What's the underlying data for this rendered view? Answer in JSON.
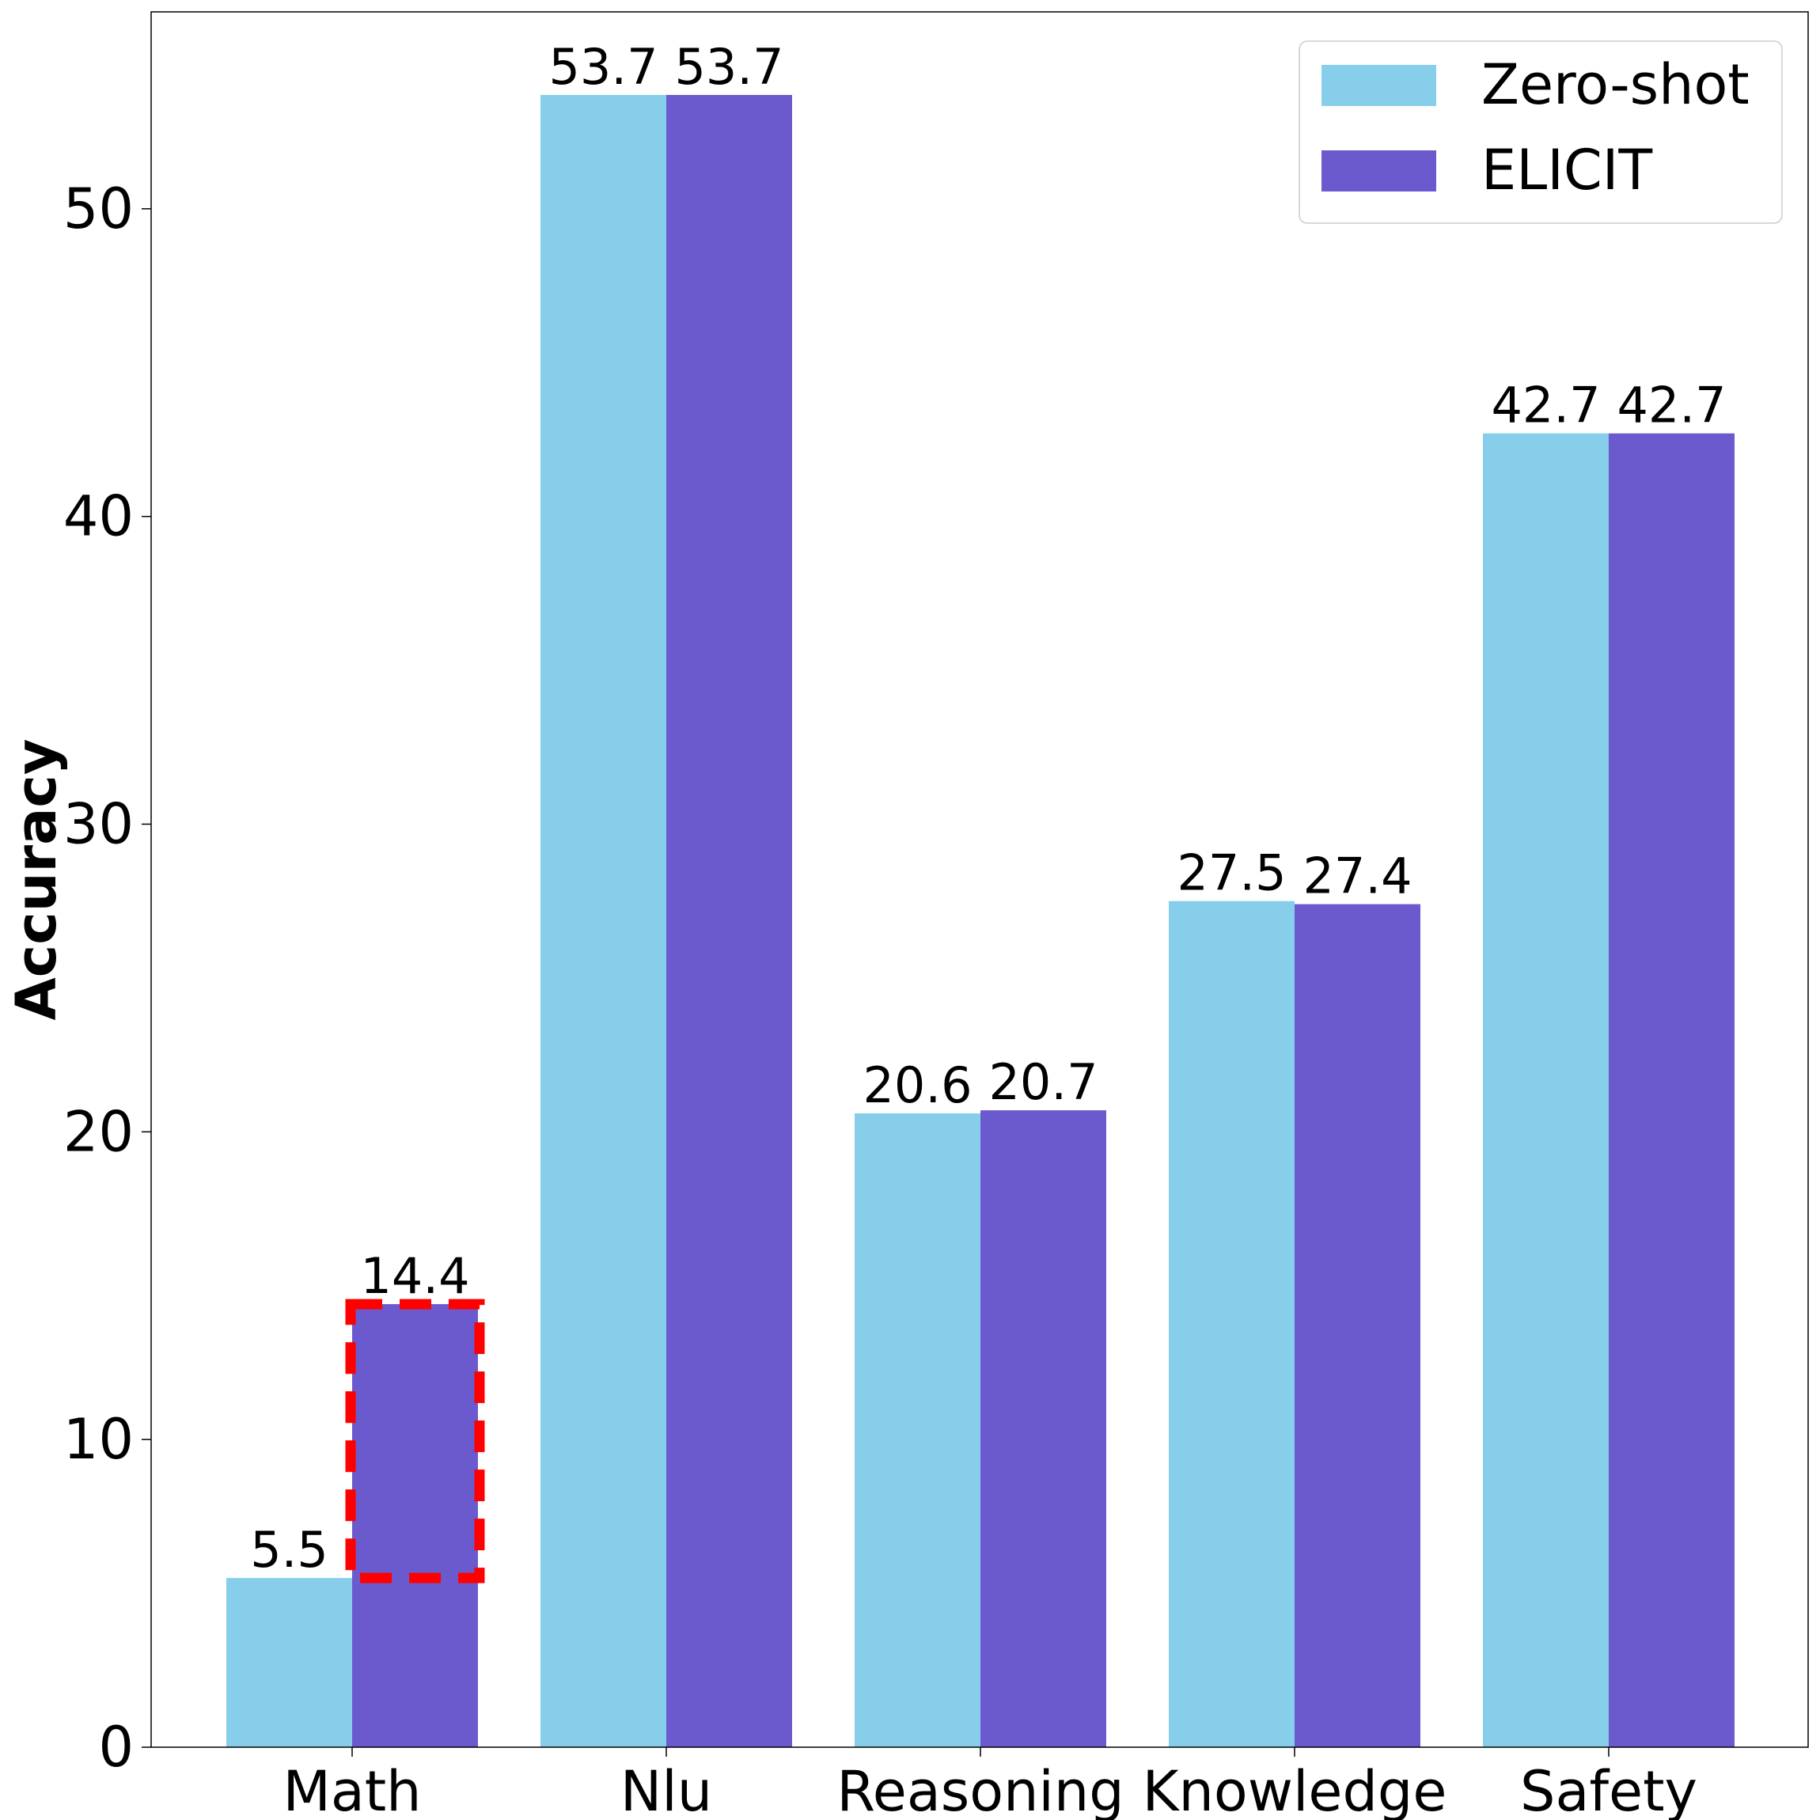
{
  "chart_data": {
    "type": "bar",
    "title": "",
    "xlabel": "",
    "ylabel": "Accuracy",
    "ylim": [
      0,
      56.4
    ],
    "yticks": [
      0,
      10,
      20,
      30,
      40,
      50
    ],
    "categories": [
      "Math",
      "Nlu",
      "Reasoning",
      "Knowledge",
      "Safety"
    ],
    "series": [
      {
        "name": "Zero-shot",
        "color": "#87CEEB",
        "values": [
          5.5,
          53.7,
          20.6,
          27.5,
          42.7
        ]
      },
      {
        "name": "ELICIT",
        "color": "#6A5ACD",
        "values": [
          14.4,
          53.7,
          20.7,
          27.4,
          42.7
        ]
      }
    ],
    "legend_position": "top-right",
    "highlight": {
      "category": "Math",
      "series": "ELICIT",
      "from": 5.5,
      "to": 14.4,
      "color": "#FF0000",
      "style": "dashed"
    }
  }
}
